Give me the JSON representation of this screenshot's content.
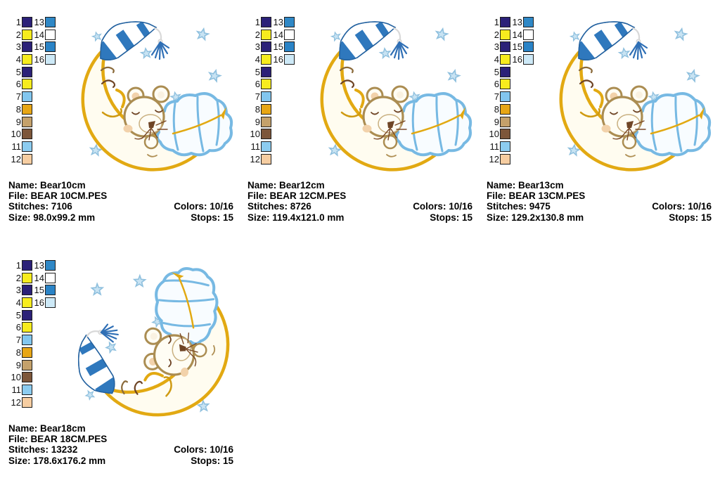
{
  "labels": {
    "name": "Name:",
    "file": "File:",
    "stitches": "Stitches:",
    "size": "Size:",
    "colors": "Colors:",
    "stops": "Stops:"
  },
  "designs": [
    {
      "name": "Bear10cm",
      "file": "BEAR 10CM.PES",
      "stitches": "7106",
      "colors": "10/16",
      "size": "98.0x99.2 mm",
      "stops": "15"
    },
    {
      "name": "Bear12cm",
      "file": "BEAR 12CM.PES",
      "stitches": "8726",
      "colors": "10/16",
      "size": "119.4x121.0 mm",
      "stops": "15"
    },
    {
      "name": "Bear13cm",
      "file": "BEAR 13CM.PES",
      "stitches": "9475",
      "colors": "10/16",
      "size": "129.2x130.8 mm",
      "stops": "15"
    },
    {
      "name": "Bear18cm",
      "file": "BEAR 18CM.PES",
      "stitches": "13232",
      "colors": "10/16",
      "size": "178.6x176.2 mm",
      "stops": "15"
    }
  ],
  "palette": {
    "swatches": [
      {
        "num": "1",
        "color": "#2b2178"
      },
      {
        "num": "2",
        "color": "#f7ec1e"
      },
      {
        "num": "3",
        "color": "#2b2178"
      },
      {
        "num": "4",
        "color": "#f7ec1e"
      },
      {
        "num": "5",
        "color": "#2b2178"
      },
      {
        "num": "6",
        "color": "#f7ec1e"
      },
      {
        "num": "7",
        "color": "#82c6ef"
      },
      {
        "num": "8",
        "color": "#e7a615"
      },
      {
        "num": "9",
        "color": "#c4a16b"
      },
      {
        "num": "10",
        "color": "#7d563a"
      },
      {
        "num": "11",
        "color": "#8cccf0"
      },
      {
        "num": "12",
        "color": "#f6cda1"
      },
      {
        "num": "13",
        "color": "#2f88c6"
      },
      {
        "num": "14",
        "color": "#ffffff"
      },
      {
        "num": "15",
        "color": "#2a83c6"
      },
      {
        "num": "16",
        "color": "#cde9f7"
      }
    ]
  },
  "artwork_colors": {
    "moon_gold": "#e2a912",
    "hat_blue": "#2f78bd",
    "blanket_blue": "#77b9e3",
    "star_blue": "#c8e3f3",
    "bear_outline_tan": "#ab8d52",
    "stitch_brown": "#6f4526",
    "skin_peach": "#f2d2ab"
  }
}
